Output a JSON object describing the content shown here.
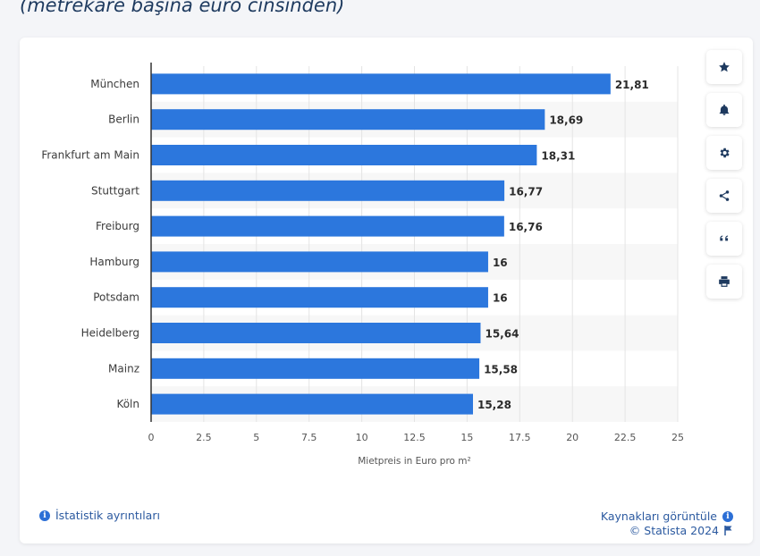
{
  "header": {
    "subtitle": "(metrekare başına euro cinsinden)"
  },
  "toolbar": {
    "buttons": [
      {
        "name": "favorite-button",
        "icon": "star-icon"
      },
      {
        "name": "notification-button",
        "icon": "bell-icon"
      },
      {
        "name": "settings-button",
        "icon": "gear-icon"
      },
      {
        "name": "share-button",
        "icon": "share-icon"
      },
      {
        "name": "cite-button",
        "icon": "quote-icon"
      },
      {
        "name": "print-button",
        "icon": "printer-icon"
      }
    ]
  },
  "footer": {
    "details_label": "İstatistik ayrıntıları",
    "copyright": "© Statista 2024",
    "sources_label": "Kaynakları görüntüle"
  },
  "colors": {
    "bar": "#2c77dd",
    "accent": "#2c5aa0"
  },
  "chart_data": {
    "type": "bar",
    "orientation": "horizontal",
    "categories": [
      "München",
      "Berlin",
      "Frankfurt am Main",
      "Stuttgart",
      "Freiburg",
      "Hamburg",
      "Potsdam",
      "Heidelberg",
      "Mainz",
      "Köln"
    ],
    "values": [
      21.81,
      18.69,
      18.31,
      16.77,
      16.76,
      16,
      16,
      15.64,
      15.58,
      15.28
    ],
    "value_labels": [
      "21,81",
      "18,69",
      "18,31",
      "16,77",
      "16,76",
      "16",
      "16",
      "15,64",
      "15,58",
      "15,28"
    ],
    "xlabel": "Mietpreis in Euro pro m²",
    "xlim": [
      0,
      25
    ],
    "xticks": [
      0,
      2.5,
      5,
      7.5,
      10,
      12.5,
      15,
      17.5,
      20,
      22.5,
      25
    ],
    "xtick_labels": [
      "0",
      "2.5",
      "5",
      "7.5",
      "10",
      "12.5",
      "15",
      "17.5",
      "20",
      "22.5",
      "25"
    ],
    "grid": true
  }
}
